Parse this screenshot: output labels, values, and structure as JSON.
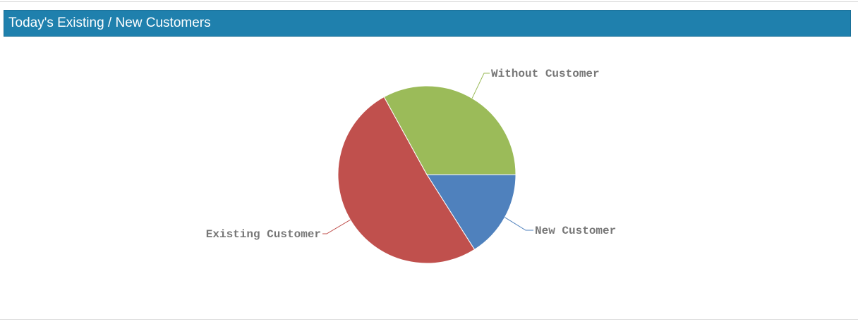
{
  "panel": {
    "title": "Today's Existing / New Customers"
  },
  "chart_data": {
    "type": "pie",
    "title": "Today's Existing / New Customers",
    "slices": [
      {
        "label": "New Customer",
        "value": 16,
        "color": "#4f81bd"
      },
      {
        "label": "Existing Customer",
        "value": 51,
        "color": "#c0504d"
      },
      {
        "label": "Without Customer",
        "value": 33,
        "color": "#9bbb59"
      }
    ],
    "legend": "none",
    "labels_position": "outside-with-leader-lines"
  }
}
